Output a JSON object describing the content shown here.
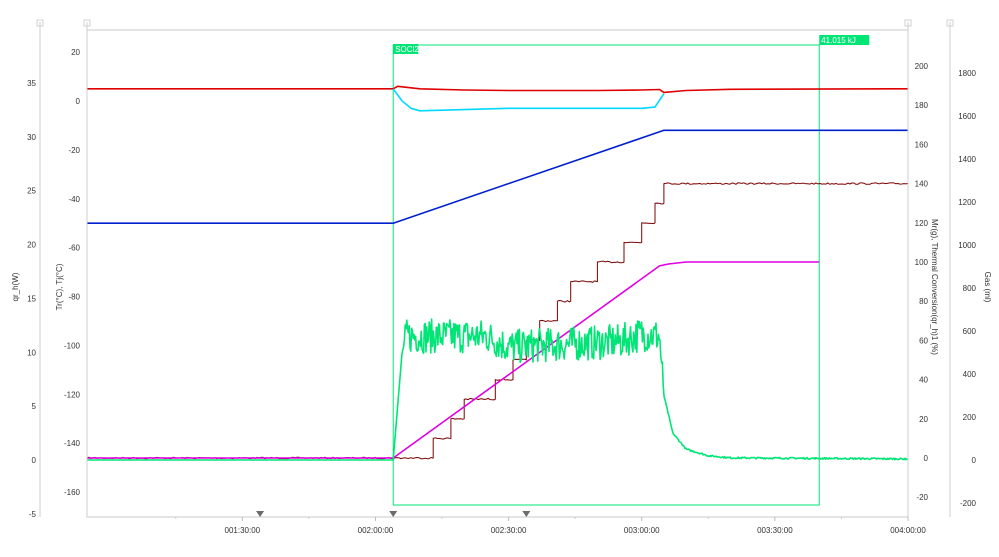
{
  "chart_data": {
    "type": "line",
    "axes": {
      "qr": {
        "label": "qr_h(W)",
        "ticks": [
          "35",
          "30",
          "25",
          "20",
          "15",
          "10",
          "5",
          "0",
          "-5"
        ]
      },
      "temp": {
        "label": "Tr(°C), Tj(°C)",
        "ticks": [
          "20",
          "0",
          "-20",
          "-40",
          "-60",
          "-80",
          "-100",
          "-120",
          "-140",
          "-160"
        ]
      },
      "mass": {
        "label": "Mr(g), Thermal Conversion(qr_h)1 (%)",
        "ticks": [
          "200",
          "180",
          "160",
          "140",
          "120",
          "100",
          "80",
          "60",
          "40",
          "20",
          "0",
          "-20"
        ]
      },
      "gas": {
        "label": "Gas (ml)",
        "ticks": [
          "1800",
          "1600",
          "1400",
          "1200",
          "1000",
          "800",
          "600",
          "400",
          "200",
          "0",
          "-200"
        ]
      }
    },
    "x_ticks": [
      "001:30:00",
      "002:00:00",
      "002:30:00",
      "003:00:00",
      "003:30:00",
      "004:00:00"
    ],
    "x_range_min": [
      55,
      240
    ],
    "markers_min": [
      94,
      124,
      154
    ],
    "integration": {
      "start_label": "SOCl2",
      "result_label": "41.015 kJ",
      "start_min": 124,
      "end_min": 220,
      "color": "#00e676"
    },
    "series": [
      {
        "color": "#e00000",
        "axis": "temp",
        "points": [
          [
            55,
            5
          ],
          [
            124,
            5
          ],
          [
            125,
            6
          ],
          [
            130,
            5
          ],
          [
            140,
            4.5
          ],
          [
            150,
            4.3
          ],
          [
            170,
            4.3
          ],
          [
            180,
            4.5
          ],
          [
            184,
            4.7
          ],
          [
            185,
            3.5
          ],
          [
            190,
            4.3
          ],
          [
            200,
            4.8
          ],
          [
            240,
            5
          ]
        ]
      },
      {
        "color": "#00d8ff",
        "axis": "temp",
        "points": [
          [
            124,
            5
          ],
          [
            126,
            0
          ],
          [
            128,
            -3
          ],
          [
            130,
            -4
          ],
          [
            140,
            -3.5
          ],
          [
            150,
            -3
          ],
          [
            160,
            -3
          ],
          [
            170,
            -3
          ],
          [
            180,
            -3
          ],
          [
            183,
            -2.5
          ],
          [
            185,
            3
          ]
        ]
      },
      {
        "color": "#0020d0",
        "axis": "temp",
        "points": [
          [
            55,
            -50
          ],
          [
            124,
            -50
          ],
          [
            185,
            -12
          ],
          [
            240,
            -12
          ]
        ]
      },
      {
        "color": "#7a0000",
        "axis": "mass",
        "steps": [
          [
            55,
            0
          ],
          [
            133,
            10
          ],
          [
            137,
            20
          ],
          [
            140,
            30
          ],
          [
            147,
            40
          ],
          [
            151,
            50
          ],
          [
            154,
            60
          ],
          [
            157,
            70
          ],
          [
            161,
            80
          ],
          [
            164,
            90
          ],
          [
            170,
            100
          ],
          [
            176,
            110
          ],
          [
            180,
            120
          ],
          [
            183,
            130
          ],
          [
            185,
            140
          ],
          [
            240,
            140
          ]
        ]
      },
      {
        "color": "#e000e0",
        "axis": "mass",
        "points": [
          [
            55,
            0
          ],
          [
            124,
            0
          ],
          [
            184,
            98
          ],
          [
            186,
            99
          ],
          [
            190,
            100
          ],
          [
            220,
            100
          ]
        ]
      },
      {
        "color": "#00e676",
        "axis": "qr",
        "noisy": [
          [
            124,
            0
          ],
          [
            125,
            5
          ],
          [
            126,
            10
          ],
          [
            127,
            11.5
          ],
          [
            145,
            11.5
          ],
          [
            150,
            10.5
          ],
          [
            160,
            10.7
          ],
          [
            175,
            11
          ],
          [
            180,
            11.7
          ],
          [
            184,
            11.5
          ],
          [
            185,
            6
          ],
          [
            187,
            2.5
          ],
          [
            190,
            1
          ],
          [
            195,
            0.4
          ],
          [
            200,
            0.2
          ],
          [
            240,
            0.1
          ]
        ],
        "flat": [
          [
            55,
            0
          ],
          [
            124,
            0
          ]
        ]
      }
    ]
  }
}
